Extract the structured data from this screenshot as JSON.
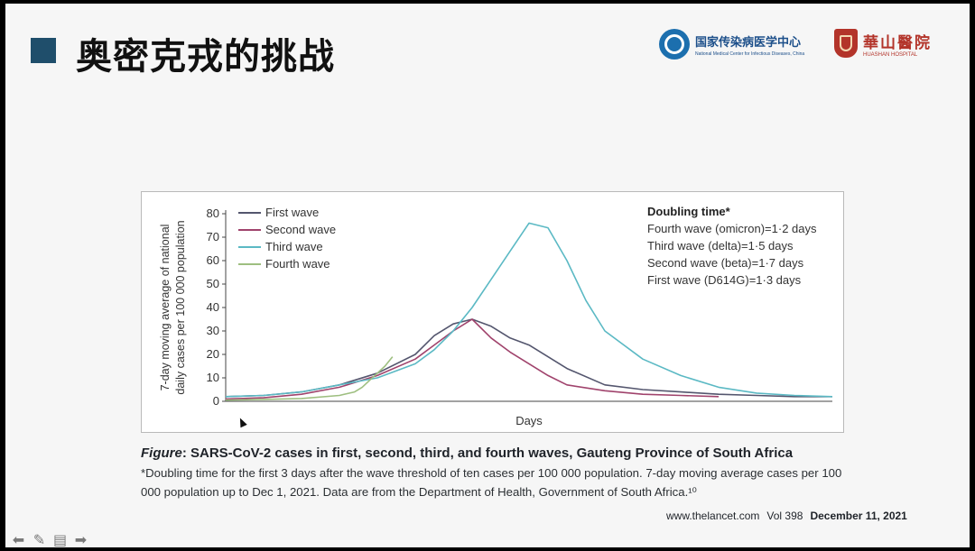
{
  "slide": {
    "title": "奥密克戎的挑战",
    "logos": [
      {
        "cn": "国家传染病医学中心",
        "en": "National Medical Center for Infectious Diseases, China"
      },
      {
        "cn": "華山醫院",
        "en": "HUASHAN HOSPITAL"
      }
    ]
  },
  "chart_data": {
    "type": "line",
    "xlabel": "Days",
    "ylabel": "7-day moving average of national daily cases per 100 000 population",
    "ylim": [
      0,
      80
    ],
    "yticks": [
      0,
      10,
      20,
      30,
      40,
      50,
      60,
      70,
      80
    ],
    "xlim": [
      0,
      160
    ],
    "legend_position": "top-left",
    "series": [
      {
        "name": "First wave",
        "color": "#54566e",
        "x": [
          0,
          10,
          20,
          30,
          40,
          50,
          55,
          60,
          65,
          70,
          75,
          80,
          85,
          90,
          100,
          110,
          120,
          130,
          140,
          150,
          160
        ],
        "y": [
          2,
          2.5,
          4,
          7,
          12,
          20,
          28,
          33,
          35,
          32,
          27,
          24,
          19,
          14,
          7,
          5,
          4,
          3,
          2.5,
          2,
          2
        ]
      },
      {
        "name": "Second wave",
        "color": "#a0436c",
        "x": [
          0,
          10,
          20,
          30,
          40,
          50,
          55,
          60,
          65,
          70,
          75,
          80,
          85,
          90,
          100,
          110,
          120,
          130
        ],
        "y": [
          1,
          1.5,
          3,
          6,
          11,
          18,
          24,
          30,
          35,
          27,
          21,
          16,
          11,
          7,
          4.5,
          3,
          2.5,
          2
        ]
      },
      {
        "name": "Third wave",
        "color": "#5bb9c4",
        "x": [
          0,
          10,
          20,
          30,
          40,
          50,
          55,
          60,
          65,
          70,
          75,
          80,
          85,
          90,
          95,
          100,
          110,
          120,
          130,
          140,
          150,
          160
        ],
        "y": [
          2,
          2.5,
          4,
          7,
          10,
          16,
          22,
          30,
          40,
          52,
          64,
          76,
          74,
          60,
          43,
          30,
          18,
          11,
          6,
          3.5,
          2.5,
          2
        ]
      },
      {
        "name": "Fourth wave",
        "color": "#9ebf80",
        "x": [
          0,
          10,
          20,
          30,
          34,
          36,
          38,
          40,
          42,
          44
        ],
        "y": [
          0.5,
          0.8,
          1.2,
          2.5,
          4,
          6,
          9,
          12,
          15,
          19
        ]
      }
    ],
    "doubling_time": {
      "title": "Doubling time*",
      "lines": [
        "Fourth wave (omicron)=1·2 days",
        "Third wave (delta)=1·5 days",
        "Second wave (beta)=1·7 days",
        "First wave (D614G)=1·3 days"
      ]
    }
  },
  "caption": {
    "figure_word": "Figure",
    "title_rest": ": SARS-CoV-2 cases in first, second, third, and fourth waves, Gauteng Province of South Africa",
    "note": "*Doubling time for the first 3 days after the wave threshold of ten cases per 100 000 population. 7-day moving average cases per 100 000 population up to Dec 1, 2021. Data are from the Department of Health, Government of South Africa.¹⁰"
  },
  "citation": {
    "site": "www.thelancet.com",
    "vol": "Vol 398",
    "date": "December 11, 2021"
  },
  "toolbar": {
    "icons": [
      "arrow-left-icon",
      "pen-icon",
      "menu-icon",
      "arrow-right-icon"
    ],
    "glyphs": [
      "⬅",
      "✎",
      "▤",
      "➡"
    ]
  }
}
